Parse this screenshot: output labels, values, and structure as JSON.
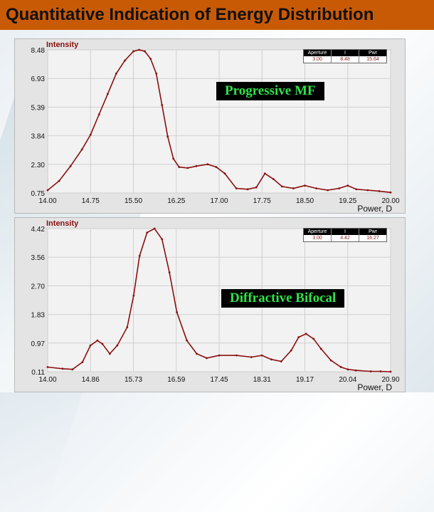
{
  "page_title": "Quantitative Indication of Energy Distribution",
  "charts": [
    {
      "ylabel": "Intensity",
      "xlabel": "Power, D",
      "annotation": "Progressive MF",
      "info_headers": [
        "Aperture",
        "I",
        "Pwr"
      ],
      "info_values": [
        "3.00",
        "8.48",
        "15.64"
      ]
    },
    {
      "ylabel": "Intensity",
      "xlabel": "Power, D",
      "annotation": "Diffractive Bifocal",
      "info_headers": [
        "Aperture",
        "I",
        "Pwr"
      ],
      "info_values": [
        "3.00",
        "4.42",
        "16.27"
      ]
    }
  ],
  "chart_data": [
    {
      "type": "line",
      "ylabel": "Intensity",
      "xlabel": "Power, D",
      "xlim": [
        14.0,
        20.0
      ],
      "ylim": [
        0.75,
        8.48
      ],
      "xticks": [
        "14.00",
        "14.75",
        "15.50",
        "16.25",
        "17.00",
        "17.75",
        "18.50",
        "19.25",
        "20.00"
      ],
      "yticks": [
        "8.48",
        "6.93",
        "5.39",
        "3.84",
        "2.30",
        "0.75"
      ],
      "color": "#8b0f0f",
      "x": [
        14.0,
        14.2,
        14.4,
        14.6,
        14.75,
        14.9,
        15.05,
        15.2,
        15.35,
        15.5,
        15.6,
        15.7,
        15.8,
        15.9,
        16.0,
        16.1,
        16.2,
        16.3,
        16.45,
        16.6,
        16.8,
        16.95,
        17.1,
        17.3,
        17.5,
        17.65,
        17.8,
        17.95,
        18.1,
        18.3,
        18.5,
        18.7,
        18.9,
        19.1,
        19.25,
        19.4,
        19.6,
        19.8,
        20.0
      ],
      "y": [
        0.9,
        1.4,
        2.2,
        3.1,
        3.9,
        5.0,
        6.1,
        7.2,
        7.9,
        8.4,
        8.48,
        8.4,
        8.0,
        7.2,
        5.5,
        3.8,
        2.6,
        2.15,
        2.1,
        2.2,
        2.3,
        2.15,
        1.8,
        1.0,
        0.95,
        1.05,
        1.8,
        1.5,
        1.1,
        1.0,
        1.15,
        1.0,
        0.9,
        1.0,
        1.15,
        0.95,
        0.9,
        0.85,
        0.78
      ]
    },
    {
      "type": "line",
      "ylabel": "Intensity",
      "xlabel": "Power, D",
      "xlim": [
        14.0,
        20.9
      ],
      "ylim": [
        0.11,
        4.42
      ],
      "xticks": [
        "14.00",
        "14.86",
        "15.73",
        "16.59",
        "17.45",
        "18.31",
        "19.17",
        "20.04",
        "20.90"
      ],
      "yticks": [
        "4.42",
        "3.56",
        "2.70",
        "1.83",
        "0.97",
        "0.11"
      ],
      "color": "#8b0f0f",
      "x": [
        14.0,
        14.3,
        14.5,
        14.7,
        14.86,
        15.0,
        15.1,
        15.25,
        15.4,
        15.6,
        15.73,
        15.85,
        16.0,
        16.15,
        16.3,
        16.45,
        16.6,
        16.8,
        17.0,
        17.2,
        17.45,
        17.8,
        18.1,
        18.31,
        18.5,
        18.7,
        18.9,
        19.05,
        19.2,
        19.35,
        19.5,
        19.7,
        19.9,
        20.04,
        20.2,
        20.5,
        20.7,
        20.9
      ],
      "y": [
        0.25,
        0.2,
        0.18,
        0.4,
        0.9,
        1.05,
        0.95,
        0.65,
        0.9,
        1.45,
        2.4,
        3.6,
        4.3,
        4.42,
        4.1,
        3.1,
        1.9,
        1.05,
        0.65,
        0.52,
        0.6,
        0.6,
        0.55,
        0.6,
        0.48,
        0.42,
        0.75,
        1.15,
        1.25,
        1.1,
        0.8,
        0.45,
        0.25,
        0.18,
        0.15,
        0.12,
        0.12,
        0.11
      ]
    }
  ]
}
